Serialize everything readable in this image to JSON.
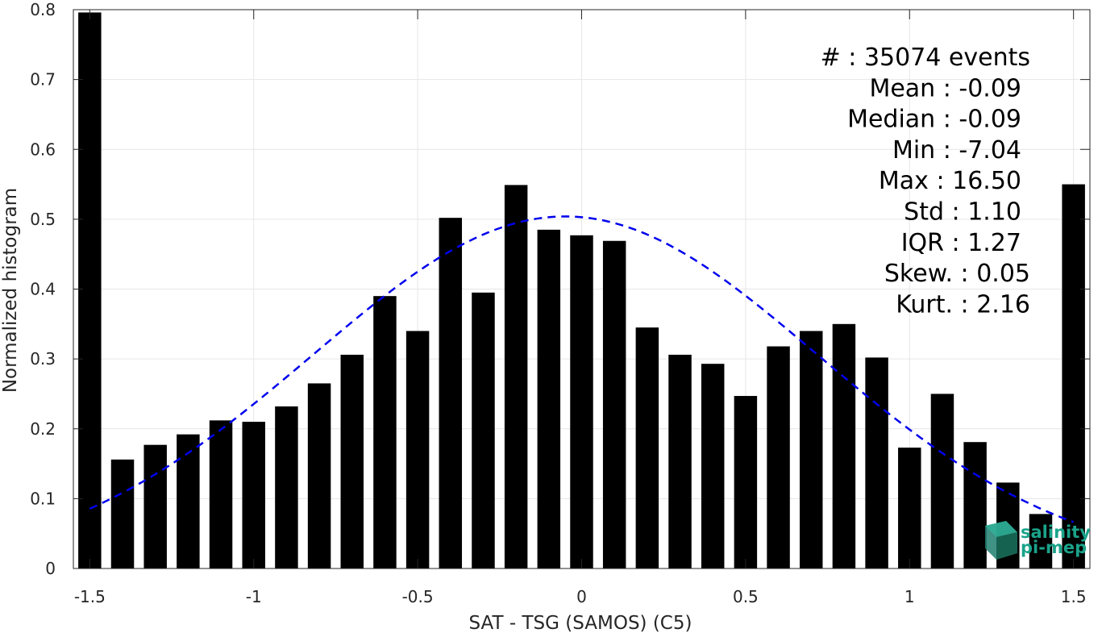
{
  "chart_data": {
    "type": "bar",
    "title": "",
    "xlabel": "SAT - TSG (SAMOS) (C5)",
    "ylabel": "Normalized histogram",
    "xlim": [
      -1.55,
      1.55
    ],
    "ylim": [
      0,
      0.8
    ],
    "xticks": [
      -1.5,
      -1,
      -0.5,
      0,
      0.5,
      1,
      1.5
    ],
    "xtick_labels": [
      "-1.5",
      "-1",
      "-0.5",
      "0",
      "0.5",
      "1",
      "1.5"
    ],
    "yticks": [
      0,
      0.1,
      0.2,
      0.3,
      0.4,
      0.5,
      0.6,
      0.7,
      0.8
    ],
    "ytick_labels": [
      "0",
      "0.1",
      "0.2",
      "0.3",
      "0.4",
      "0.5",
      "0.6",
      "0.7",
      "0.8"
    ],
    "grid": true,
    "bar_color": "#000000",
    "bar_width": 0.07,
    "x": [
      -1.5,
      -1.4,
      -1.3,
      -1.2,
      -1.1,
      -1.0,
      -0.9,
      -0.8,
      -0.7,
      -0.6,
      -0.5,
      -0.4,
      -0.3,
      -0.2,
      -0.1,
      0.0,
      0.1,
      0.2,
      0.3,
      0.4,
      0.5,
      0.6,
      0.7,
      0.8,
      0.9,
      1.0,
      1.1,
      1.2,
      1.3,
      1.4,
      1.5
    ],
    "values": [
      0.796,
      0.156,
      0.177,
      0.192,
      0.212,
      0.21,
      0.232,
      0.265,
      0.306,
      0.39,
      0.34,
      0.502,
      0.395,
      0.549,
      0.485,
      0.477,
      0.469,
      0.345,
      0.306,
      0.293,
      0.247,
      0.318,
      0.34,
      0.35,
      0.302,
      0.173,
      0.25,
      0.181,
      0.123,
      0.078,
      0.55
    ],
    "fit_curve": {
      "type": "gaussian",
      "style": "dashed",
      "color": "#0000ee",
      "mean": -0.05,
      "peak": 0.504,
      "sigma": 0.77,
      "x_range": [
        -1.5,
        1.5
      ]
    },
    "stats": [
      "#  : 35074 events",
      "Mean : -0.09",
      "Median : -0.09",
      "Min : -7.04",
      "Max : 16.50",
      "Std : 1.10",
      "IQR : 1.27",
      "Skew. : 0.05",
      "Kurt. : 2.16"
    ]
  },
  "logo": {
    "line1": "salinity",
    "line2": "pi-mep",
    "color": "#1aa38a"
  }
}
